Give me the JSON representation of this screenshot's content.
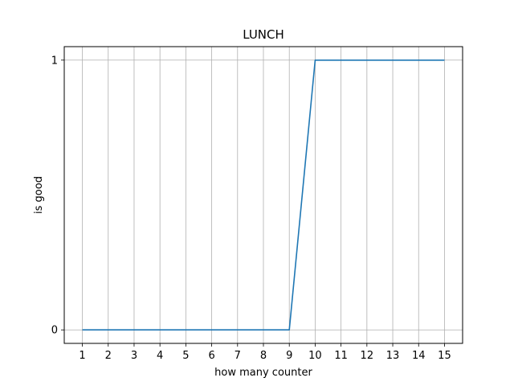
{
  "chart_data": {
    "type": "line",
    "title": "LUNCH",
    "xlabel": "how many counter",
    "ylabel": "is good",
    "x": [
      1,
      2,
      3,
      4,
      5,
      6,
      7,
      8,
      9,
      10,
      11,
      12,
      13,
      14,
      15
    ],
    "series": [
      {
        "values": [
          0,
          0,
          0,
          0,
          0,
          0,
          0,
          0,
          0,
          1,
          1,
          1,
          1,
          1,
          1
        ]
      }
    ],
    "xticks": [
      "1",
      "2",
      "3",
      "4",
      "5",
      "6",
      "7",
      "8",
      "9",
      "10",
      "11",
      "12",
      "13",
      "14",
      "15"
    ],
    "yticks": [
      "0",
      "1"
    ],
    "xlim": [
      0.3,
      15.7
    ],
    "ylim": [
      -0.05,
      1.05
    ],
    "grid": true,
    "colors": {
      "line": "#1f77b4",
      "grid": "#b0b0b0",
      "axes": "#000000"
    }
  }
}
